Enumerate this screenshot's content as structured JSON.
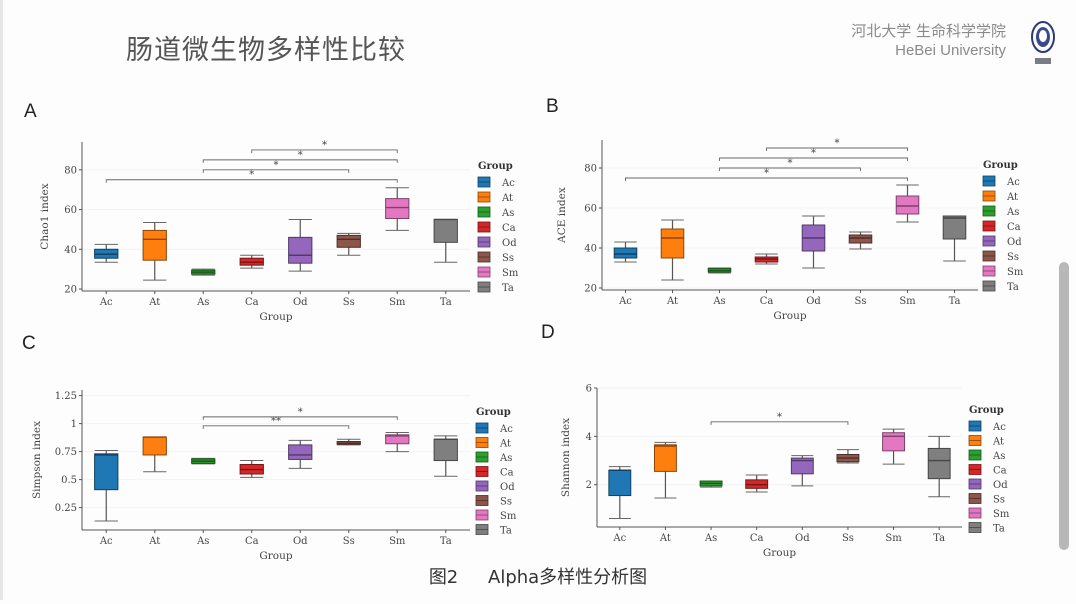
{
  "slide": {
    "title": "肠道微生物多样性比较",
    "institution_cn": "河北大学 生命科学学院",
    "institution_en": "HeBei University",
    "logo_icon": "university-seal-icon",
    "caption_label": "图2",
    "caption_text": "Alpha多样性分析图"
  },
  "panels": [
    "A",
    "B",
    "C",
    "D"
  ],
  "colors": {
    "Ac": "#1f77b4",
    "At": "#ff7f0e",
    "As": "#2ca02c",
    "Ca": "#d62728",
    "Od": "#9467bd",
    "Ss": "#8c564b",
    "Sm": "#e377c2",
    "Ta": "#7f7f7f"
  },
  "chart_data": [
    {
      "type": "boxplot",
      "panel": "A",
      "xlabel": "Group",
      "ylabel": "Chao1 index",
      "ylim": [
        19,
        94
      ],
      "yticks": [
        20,
        40,
        60,
        80
      ],
      "ytick_labels": [
        "20",
        "40",
        "60",
        "80"
      ],
      "categories": [
        "Ac",
        "At",
        "As",
        "Ca",
        "Od",
        "Ss",
        "Sm",
        "Ta"
      ],
      "legend": {
        "title": "Group",
        "entries": [
          "Ac",
          "At",
          "As",
          "Ca",
          "Od",
          "Ss",
          "Sm",
          "Ta"
        ],
        "position": "right"
      },
      "boxes": [
        {
          "min": 33.5,
          "q1": 35.5,
          "median": 37.5,
          "q3": 40,
          "max": 42.5
        },
        {
          "min": 24.5,
          "q1": 34.5,
          "median": 45,
          "q3": 49.5,
          "max": 53.5
        },
        {
          "min": 27,
          "q1": 27.5,
          "median": 28.5,
          "q3": 29.5,
          "max": 30
        },
        {
          "min": 30.5,
          "q1": 32,
          "median": 33.5,
          "q3": 35.5,
          "max": 37
        },
        {
          "min": 29,
          "q1": 33,
          "median": 37,
          "q3": 46,
          "max": 55
        },
        {
          "min": 37,
          "q1": 41,
          "median": 45,
          "q3": 47,
          "max": 48
        },
        {
          "min": 49.5,
          "q1": 55.5,
          "median": 61,
          "q3": 65.5,
          "max": 71
        },
        {
          "min": 33.5,
          "q1": 43.5,
          "median": 55,
          "q3": 55,
          "max": 55
        }
      ],
      "significance": [
        {
          "from": "Ac",
          "to": "Sm",
          "label": "*",
          "y": 75
        },
        {
          "from": "As",
          "to": "Ss",
          "label": "*",
          "y": 80
        },
        {
          "from": "As",
          "to": "Sm",
          "label": "*",
          "y": 85
        },
        {
          "from": "Ca",
          "to": "Sm",
          "label": "*",
          "y": 90
        }
      ]
    },
    {
      "type": "boxplot",
      "panel": "B",
      "xlabel": "Group",
      "ylabel": "ACE index",
      "ylim": [
        19,
        94
      ],
      "yticks": [
        20,
        40,
        60,
        80
      ],
      "ytick_labels": [
        "20",
        "40",
        "60",
        "80"
      ],
      "categories": [
        "Ac",
        "At",
        "As",
        "Ca",
        "Od",
        "Ss",
        "Sm",
        "Ta"
      ],
      "legend": {
        "title": "Group",
        "entries": [
          "Ac",
          "At",
          "As",
          "Ca",
          "Od",
          "Ss",
          "Sm",
          "Ta"
        ],
        "position": "right"
      },
      "boxes": [
        {
          "min": 33,
          "q1": 35,
          "median": 37,
          "q3": 40,
          "max": 43
        },
        {
          "min": 24,
          "q1": 35,
          "median": 45,
          "q3": 49.5,
          "max": 54
        },
        {
          "min": 27.5,
          "q1": 28,
          "median": 28.8,
          "q3": 29.8,
          "max": 30
        },
        {
          "min": 32,
          "q1": 33,
          "median": 34.5,
          "q3": 35.5,
          "max": 37
        },
        {
          "min": 30,
          "q1": 38.5,
          "median": 45,
          "q3": 51.5,
          "max": 56
        },
        {
          "min": 39.5,
          "q1": 42.5,
          "median": 45,
          "q3": 46.5,
          "max": 48
        },
        {
          "min": 53,
          "q1": 57,
          "median": 61,
          "q3": 66,
          "max": 71.5
        },
        {
          "min": 33.5,
          "q1": 44.5,
          "median": 55,
          "q3": 56,
          "max": 56
        }
      ],
      "significance": [
        {
          "from": "Ac",
          "to": "Sm",
          "label": "*",
          "y": 75
        },
        {
          "from": "As",
          "to": "Ss",
          "label": "*",
          "y": 80
        },
        {
          "from": "As",
          "to": "Sm",
          "label": "*",
          "y": 85
        },
        {
          "from": "Ca",
          "to": "Sm",
          "label": "*",
          "y": 90
        }
      ]
    },
    {
      "type": "boxplot",
      "panel": "C",
      "xlabel": "Group",
      "ylabel": "Simpson index",
      "ylim": [
        0.05,
        1.3
      ],
      "yticks": [
        0.25,
        0.5,
        0.75,
        1,
        1.25
      ],
      "ytick_labels": [
        "0.25",
        "0.5",
        "0.75",
        "1",
        "1.25"
      ],
      "categories": [
        "Ac",
        "At",
        "As",
        "Ca",
        "Od",
        "Ss",
        "Sm",
        "Ta"
      ],
      "legend": {
        "title": "Group",
        "entries": [
          "Ac",
          "At",
          "As",
          "Ca",
          "Od",
          "Ss",
          "Sm",
          "Ta"
        ],
        "position": "right"
      },
      "boxes": [
        {
          "min": 0.13,
          "q1": 0.41,
          "median": 0.72,
          "q3": 0.73,
          "max": 0.76
        },
        {
          "min": 0.57,
          "q1": 0.72,
          "median": 0.88,
          "q3": 0.88,
          "max": 0.88
        },
        {
          "min": 0.64,
          "q1": 0.645,
          "median": 0.665,
          "q3": 0.685,
          "max": 0.69
        },
        {
          "min": 0.52,
          "q1": 0.55,
          "median": 0.59,
          "q3": 0.635,
          "max": 0.67
        },
        {
          "min": 0.6,
          "q1": 0.68,
          "median": 0.72,
          "q3": 0.81,
          "max": 0.85
        },
        {
          "min": 0.81,
          "q1": 0.815,
          "median": 0.825,
          "q3": 0.84,
          "max": 0.86
        },
        {
          "min": 0.75,
          "q1": 0.82,
          "median": 0.89,
          "q3": 0.9,
          "max": 0.92
        },
        {
          "min": 0.53,
          "q1": 0.67,
          "median": 0.86,
          "q3": 0.86,
          "max": 0.89
        }
      ],
      "significance": [
        {
          "from": "As",
          "to": "Ss",
          "label": "**",
          "y": 0.98
        },
        {
          "from": "As",
          "to": "Sm",
          "label": "*",
          "y": 1.06
        }
      ]
    },
    {
      "type": "boxplot",
      "panel": "D",
      "xlabel": "Group",
      "ylabel": "Shannon index",
      "ylim": [
        0.25,
        6
      ],
      "yticks": [
        2,
        4,
        6
      ],
      "ytick_labels": [
        "2",
        "4",
        "6"
      ],
      "categories": [
        "Ac",
        "At",
        "As",
        "Ca",
        "Od",
        "Ss",
        "Sm",
        "Ta"
      ],
      "legend": {
        "title": "Group",
        "entries": [
          "Ac",
          "At",
          "As",
          "Ca",
          "Od",
          "Ss",
          "Sm",
          "Ta"
        ],
        "position": "right"
      },
      "boxes": [
        {
          "min": 0.6,
          "q1": 1.55,
          "median": 2.6,
          "q3": 2.6,
          "max": 2.75
        },
        {
          "min": 1.45,
          "q1": 2.55,
          "median": 3.6,
          "q3": 3.65,
          "max": 3.75
        },
        {
          "min": 1.9,
          "q1": 1.95,
          "median": 2.05,
          "q3": 2.15,
          "max": 2.15
        },
        {
          "min": 1.7,
          "q1": 1.85,
          "median": 2.0,
          "q3": 2.2,
          "max": 2.4
        },
        {
          "min": 1.95,
          "q1": 2.45,
          "median": 3.0,
          "q3": 3.1,
          "max": 3.2
        },
        {
          "min": 2.9,
          "q1": 2.95,
          "median": 3.1,
          "q3": 3.25,
          "max": 3.45
        },
        {
          "min": 2.85,
          "q1": 3.4,
          "median": 4.0,
          "q3": 4.15,
          "max": 4.3
        },
        {
          "min": 1.5,
          "q1": 2.25,
          "median": 3.0,
          "q3": 3.5,
          "max": 4.0
        }
      ],
      "significance": [
        {
          "from": "As",
          "to": "Ss",
          "label": "*",
          "y": 4.6
        }
      ]
    }
  ]
}
